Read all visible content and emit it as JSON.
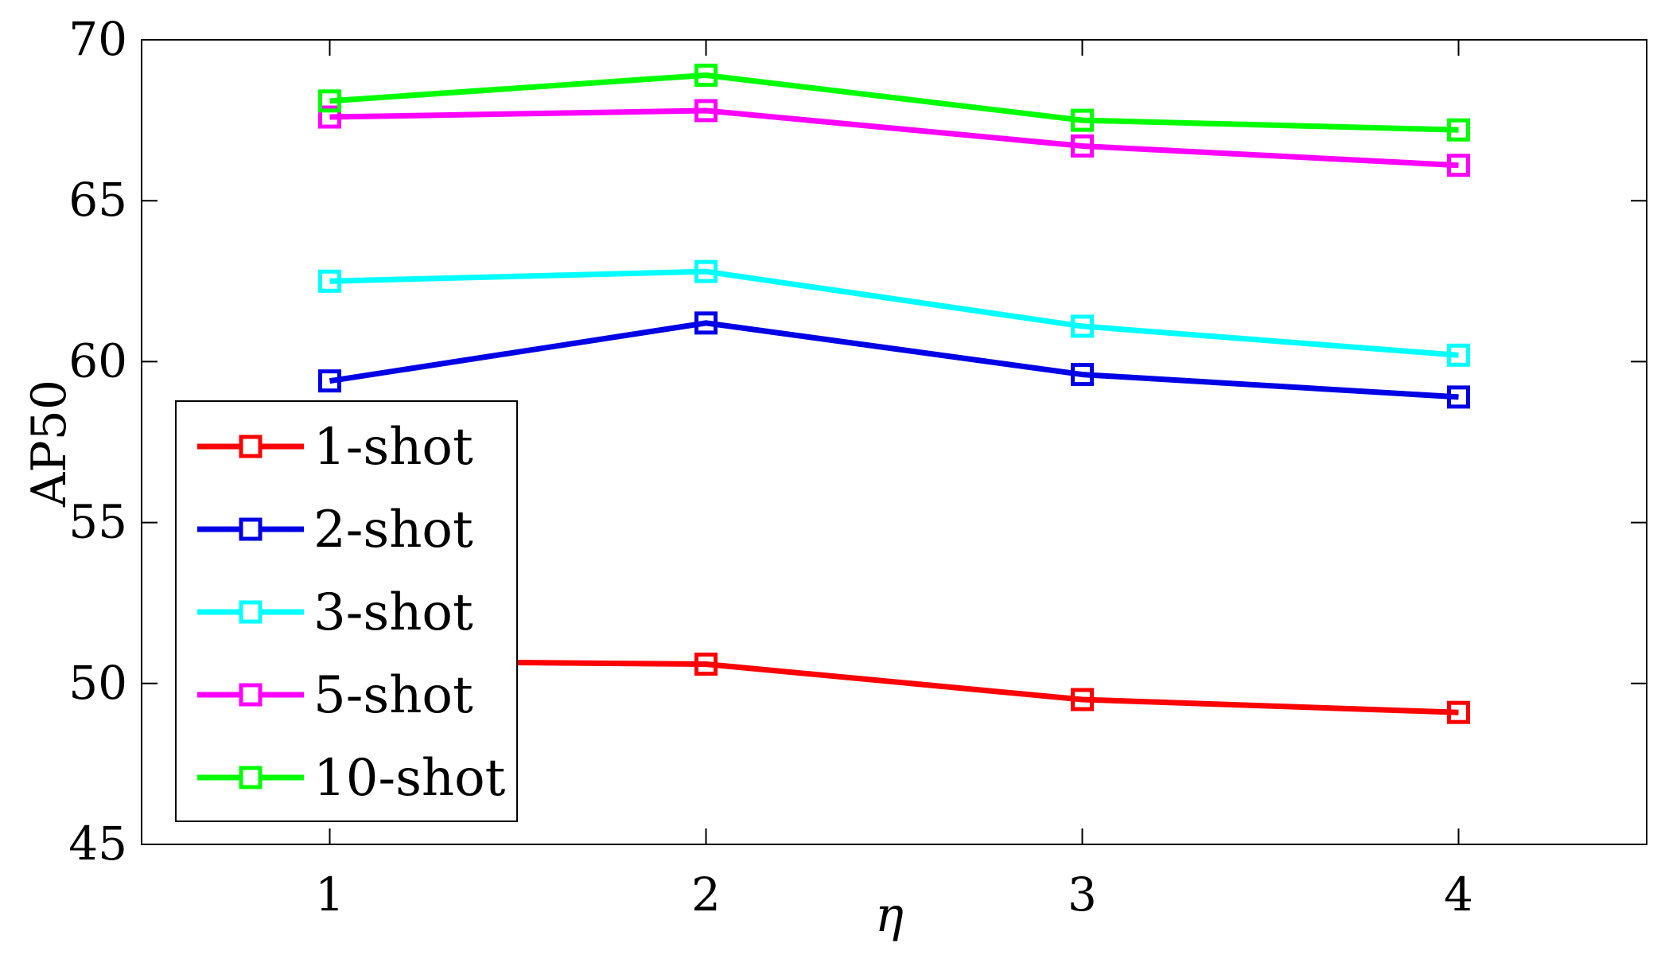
{
  "chart_data": {
    "type": "line",
    "title": "",
    "xlabel": "η",
    "ylabel": "AP50",
    "x": [
      1,
      2,
      3,
      4
    ],
    "xticks": [
      "1",
      "2",
      "3",
      "4"
    ],
    "xlim": [
      0.5,
      4.5
    ],
    "ylim": [
      45,
      70
    ],
    "yticks": [
      "45",
      "50",
      "55",
      "60",
      "65",
      "70"
    ],
    "grid": false,
    "legend_position": "bottom-left",
    "marker": "square",
    "series": [
      {
        "name": "1-shot",
        "color": "#ff0000",
        "values": [
          50.7,
          50.6,
          49.5,
          49.1
        ]
      },
      {
        "name": "2-shot",
        "color": "#0000e6",
        "values": [
          59.4,
          61.2,
          59.6,
          58.9
        ]
      },
      {
        "name": "3-shot",
        "color": "#00ffff",
        "values": [
          62.5,
          62.8,
          61.1,
          60.2
        ]
      },
      {
        "name": "5-shot",
        "color": "#ff00ff",
        "values": [
          67.6,
          67.8,
          66.7,
          66.1
        ]
      },
      {
        "name": "10-shot",
        "color": "#00ff00",
        "values": [
          68.1,
          68.9,
          67.5,
          67.2
        ]
      }
    ]
  }
}
